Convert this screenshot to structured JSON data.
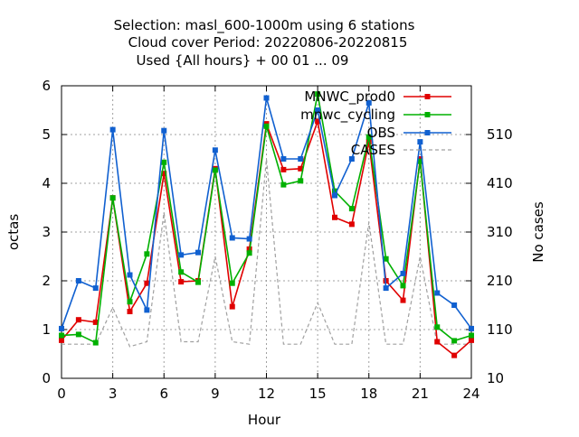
{
  "chart_data": {
    "type": "line",
    "title_lines": [
      "Selection: masl_600-1000m using     6 stations",
      "Cloud cover   Period: 20220806-20220815",
      "Used {All hours} + 00 01 ... 09"
    ],
    "xlabel": "Hour",
    "ylabel": "octas",
    "y2label": "No cases",
    "xlim": [
      0,
      24
    ],
    "ylim": [
      0,
      6
    ],
    "y2lim": [
      10,
      610
    ],
    "xticks": [
      "0",
      "3",
      "6",
      "9",
      "12",
      "15",
      "18",
      "21",
      "24"
    ],
    "yticks": [
      "0",
      "1",
      "2",
      "3",
      "4",
      "5",
      "6"
    ],
    "y2ticks": [
      "10",
      "110",
      "210",
      "310",
      "410",
      "510"
    ],
    "grid": true,
    "legend_position": "top-right",
    "x": [
      0,
      1,
      2,
      3,
      4,
      5,
      6,
      7,
      8,
      9,
      10,
      11,
      12,
      13,
      14,
      15,
      16,
      17,
      18,
      19,
      20,
      21,
      22,
      23,
      24
    ],
    "series": [
      {
        "name": "MNWC_prod0",
        "color": "#e00000",
        "axis": "left",
        "values": [
          0.78,
          1.2,
          1.15,
          3.7,
          1.37,
          1.95,
          4.2,
          1.98,
          2.0,
          4.3,
          1.47,
          2.65,
          5.22,
          4.28,
          4.3,
          5.27,
          3.3,
          3.16,
          4.85,
          2.0,
          1.6,
          4.5,
          0.75,
          0.47,
          0.78
        ]
      },
      {
        "name": "mnwc_cycling",
        "color": "#00b000",
        "axis": "left",
        "values": [
          0.88,
          0.9,
          0.73,
          3.7,
          1.57,
          2.55,
          4.43,
          2.18,
          1.97,
          4.27,
          1.95,
          2.57,
          5.17,
          3.97,
          4.05,
          5.83,
          3.84,
          3.48,
          4.95,
          2.45,
          1.9,
          4.45,
          1.05,
          0.77,
          0.88
        ]
      },
      {
        "name": "OBS",
        "color": "#1060d0",
        "axis": "left",
        "values": [
          1.02,
          2.0,
          1.85,
          5.1,
          2.12,
          1.4,
          5.08,
          2.53,
          2.58,
          4.68,
          2.88,
          2.86,
          5.75,
          4.5,
          4.5,
          5.5,
          3.75,
          4.5,
          5.65,
          1.85,
          2.15,
          4.85,
          1.75,
          1.5,
          1.02
        ]
      },
      {
        "name": "CASES",
        "color": "#a0a0a0",
        "axis": "right",
        "dashed": true,
        "values": [
          80,
          80,
          80,
          155,
          75,
          85,
          350,
          85,
          85,
          260,
          85,
          80,
          460,
          80,
          80,
          165,
          80,
          80,
          330,
          80,
          80,
          260,
          80,
          80,
          80
        ]
      }
    ]
  }
}
